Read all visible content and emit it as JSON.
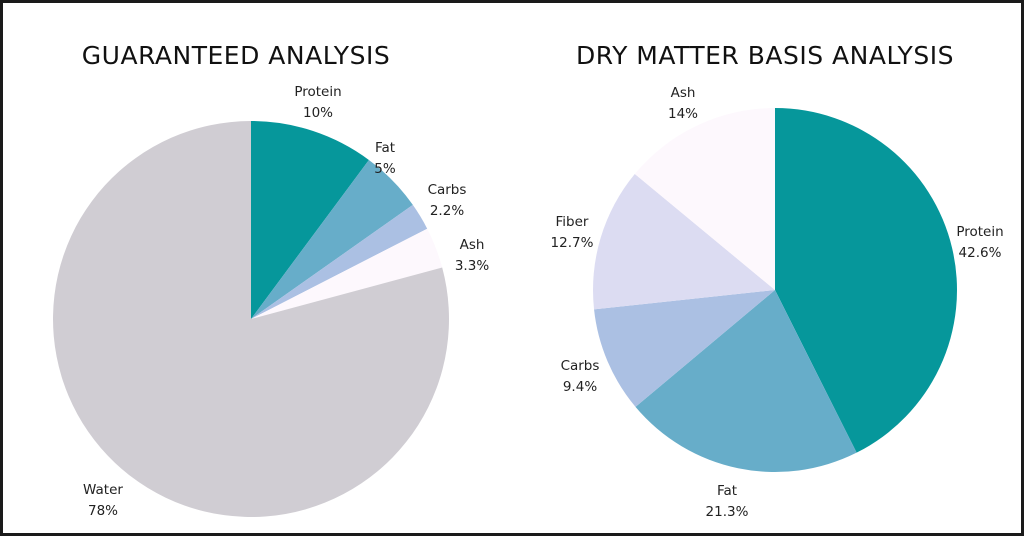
{
  "chart_data": [
    {
      "type": "pie",
      "title": "GUARANTEED ANALYSIS",
      "slices": [
        {
          "name": "Protein",
          "value": 10,
          "label": "10%",
          "color": "#06979b"
        },
        {
          "name": "Fat",
          "value": 5,
          "label": "5%",
          "color": "#67adc9"
        },
        {
          "name": "Carbs",
          "value": 2.2,
          "label": "2.2%",
          "color": "#abc0e3"
        },
        {
          "name": "Ash",
          "value": 3.3,
          "label": "3.3%",
          "color": "#fdf8fd"
        },
        {
          "name": "Water",
          "value": 78,
          "label": "78%",
          "color": "#d0cdd3"
        }
      ]
    },
    {
      "type": "pie",
      "title": "DRY MATTER BASIS ANALYSIS",
      "slices": [
        {
          "name": "Protein",
          "value": 42.6,
          "label": "42.6%",
          "color": "#06979b"
        },
        {
          "name": "Fat",
          "value": 21.3,
          "label": "21.3%",
          "color": "#67adc9"
        },
        {
          "name": "Carbs",
          "value": 9.4,
          "label": "9.4%",
          "color": "#abc0e3"
        },
        {
          "name": "Fiber",
          "value": 12.7,
          "label": "12.7%",
          "color": "#dcdcf2"
        },
        {
          "name": "Ash",
          "value": 14,
          "label": "14%",
          "color": "#fdf8fd"
        }
      ]
    }
  ]
}
